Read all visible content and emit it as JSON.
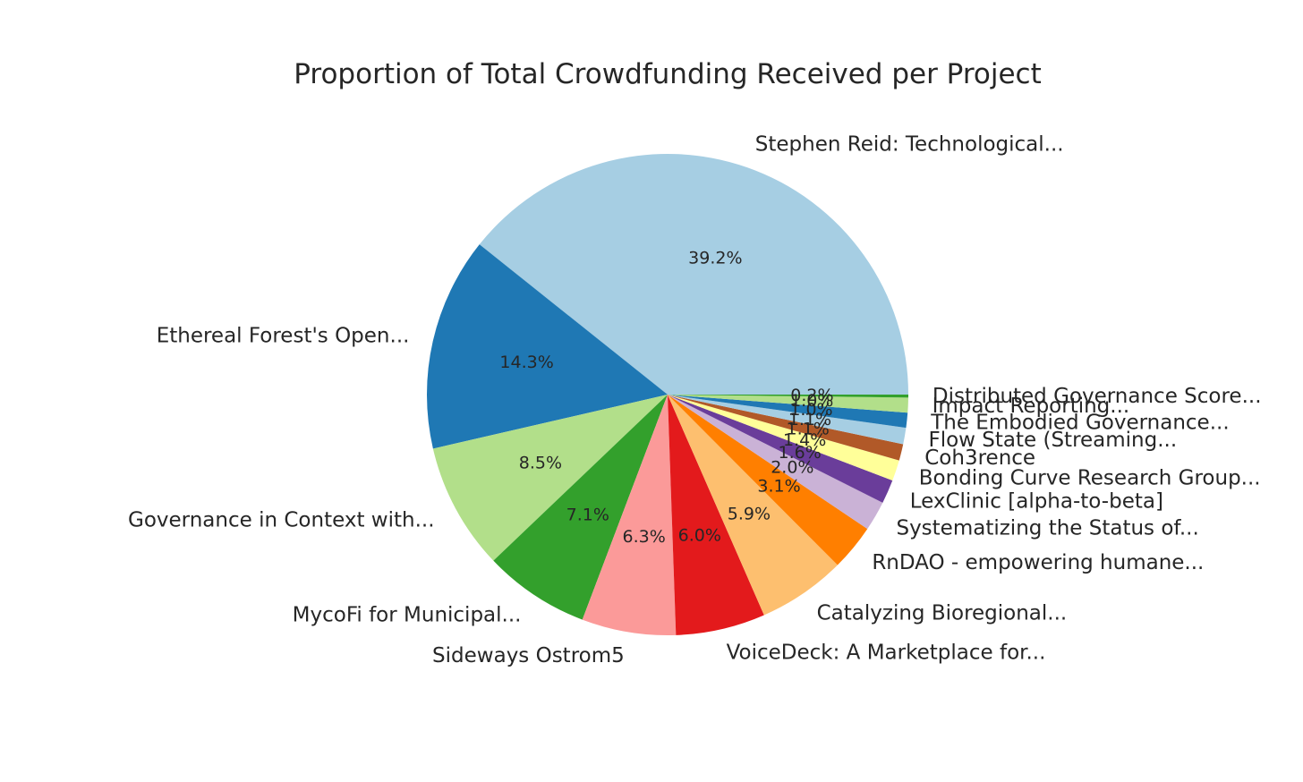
{
  "chart_data": {
    "type": "pie",
    "title": "Proportion of Total Crowdfunding Received per Project",
    "slices": [
      {
        "label": "Stephen Reid: Technological...",
        "value": 39.2,
        "pct_label": "39.2%",
        "color": "#a6cee3"
      },
      {
        "label": "Ethereal Forest's Open...",
        "value": 14.3,
        "pct_label": "14.3%",
        "color": "#1f78b4"
      },
      {
        "label": "Governance in Context with...",
        "value": 8.5,
        "pct_label": "8.5%",
        "color": "#b2df8a"
      },
      {
        "label": "MycoFi for Municipal...",
        "value": 7.1,
        "pct_label": "7.1%",
        "color": "#33a02c"
      },
      {
        "label": "Sideways Ostrom5",
        "value": 6.3,
        "pct_label": "6.3%",
        "color": "#fb9a99"
      },
      {
        "label": "VoiceDeck: A Marketplace for...",
        "value": 6.0,
        "pct_label": "6.0%",
        "color": "#e31a1c"
      },
      {
        "label": "Catalyzing Bioregional...",
        "value": 5.9,
        "pct_label": "5.9%",
        "color": "#fdbf6f"
      },
      {
        "label": "RnDAO - empowering humane...",
        "value": 3.1,
        "pct_label": "3.1%",
        "color": "#ff7f00"
      },
      {
        "label": "Systematizing the Status of...",
        "value": 2.0,
        "pct_label": "2.0%",
        "color": "#cab2d6"
      },
      {
        "label": "LexClinic [alpha-to-beta]",
        "value": 1.6,
        "pct_label": "1.6%",
        "color": "#6a3d9a"
      },
      {
        "label": "Bonding Curve Research Group...",
        "value": 1.4,
        "pct_label": "1.4%",
        "color": "#ffff99"
      },
      {
        "label": "Coh3rence",
        "value": 1.1,
        "pct_label": "1.1%",
        "color": "#b15928"
      },
      {
        "label": "Flow State (Streaming...",
        "value": 1.1,
        "pct_label": "1.1%",
        "color": "#a6cee3"
      },
      {
        "label": "The Embodied Governance...",
        "value": 1.0,
        "pct_label": "1.0%",
        "color": "#1f78b4"
      },
      {
        "label": "Impact Reporting...",
        "value": 1.0,
        "pct_label": "1.0%",
        "color": "#b2df8a"
      },
      {
        "label": "Distributed Governance Score...",
        "value": 0.2,
        "pct_label": "0.2%",
        "color": "#33a02c"
      }
    ]
  }
}
